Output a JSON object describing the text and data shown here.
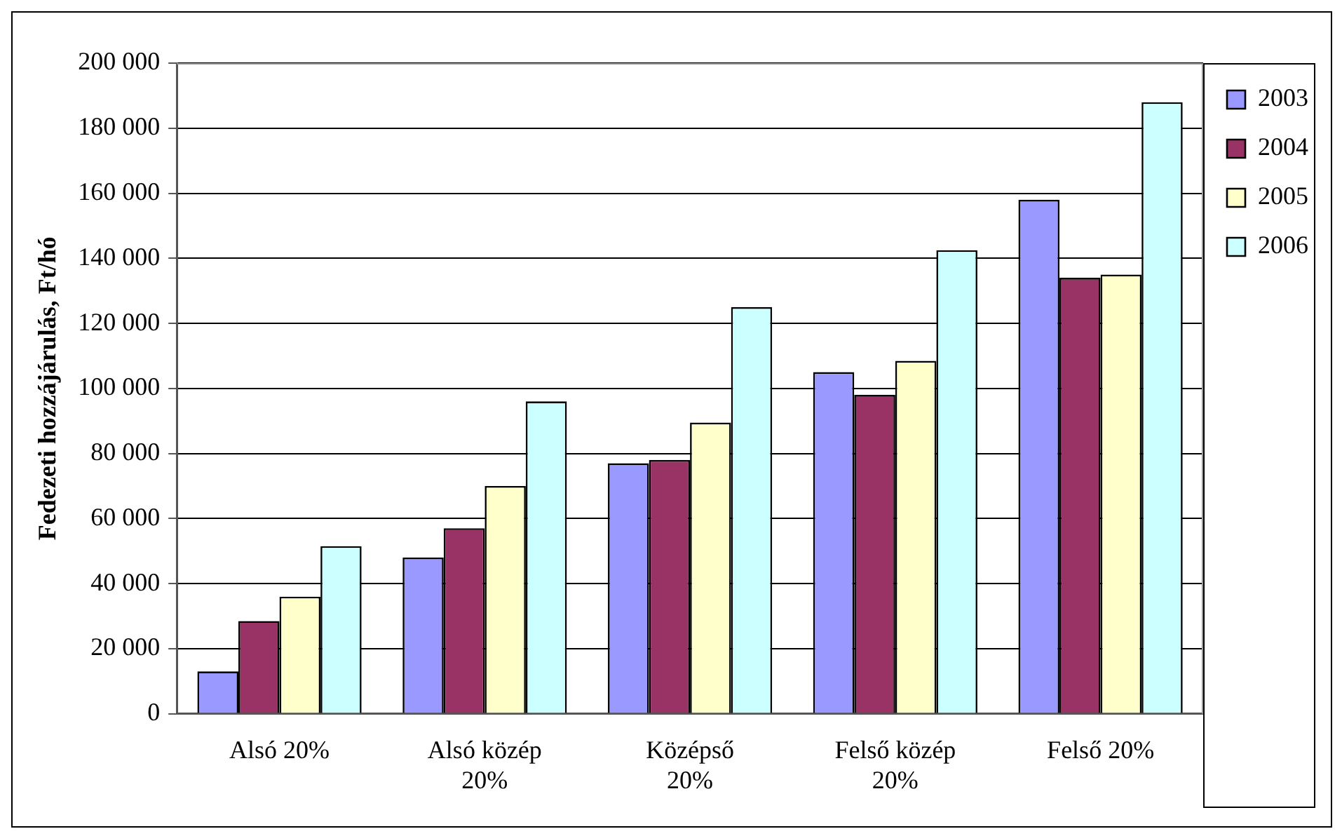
{
  "chart_data": {
    "type": "bar",
    "ylabel": "Fedezeti hozzájárulás, Ft/hó",
    "categories": [
      "Alsó 20%",
      "Alsó közép 20%",
      "Középső 20%",
      "Felső közép 20%",
      "Felső 20%"
    ],
    "series": [
      {
        "name": "2003",
        "color": "#9999ff",
        "values": [
          13000,
          48000,
          77000,
          105000,
          158000
        ]
      },
      {
        "name": "2004",
        "color": "#993366",
        "values": [
          28500,
          57000,
          78000,
          98000,
          134000
        ]
      },
      {
        "name": "2005",
        "color": "#ffffcc",
        "values": [
          36000,
          70000,
          89500,
          108500,
          135000
        ]
      },
      {
        "name": "2006",
        "color": "#ccffff",
        "values": [
          51500,
          96000,
          125000,
          142500,
          188000
        ]
      }
    ],
    "ylim": [
      0,
      200000
    ],
    "yticks": [
      {
        "value": 0,
        "label": "0"
      },
      {
        "value": 20000,
        "label": "20 000"
      },
      {
        "value": 40000,
        "label": "40 000"
      },
      {
        "value": 60000,
        "label": "60 000"
      },
      {
        "value": 80000,
        "label": "80 000"
      },
      {
        "value": 100000,
        "label": "100 000"
      },
      {
        "value": 120000,
        "label": "120 000"
      },
      {
        "value": 140000,
        "label": "140 000"
      },
      {
        "value": 160000,
        "label": "160 000"
      },
      {
        "value": 180000,
        "label": "180 000"
      },
      {
        "value": 200000,
        "label": "200 000"
      }
    ],
    "grid": "y",
    "legend": "right"
  }
}
